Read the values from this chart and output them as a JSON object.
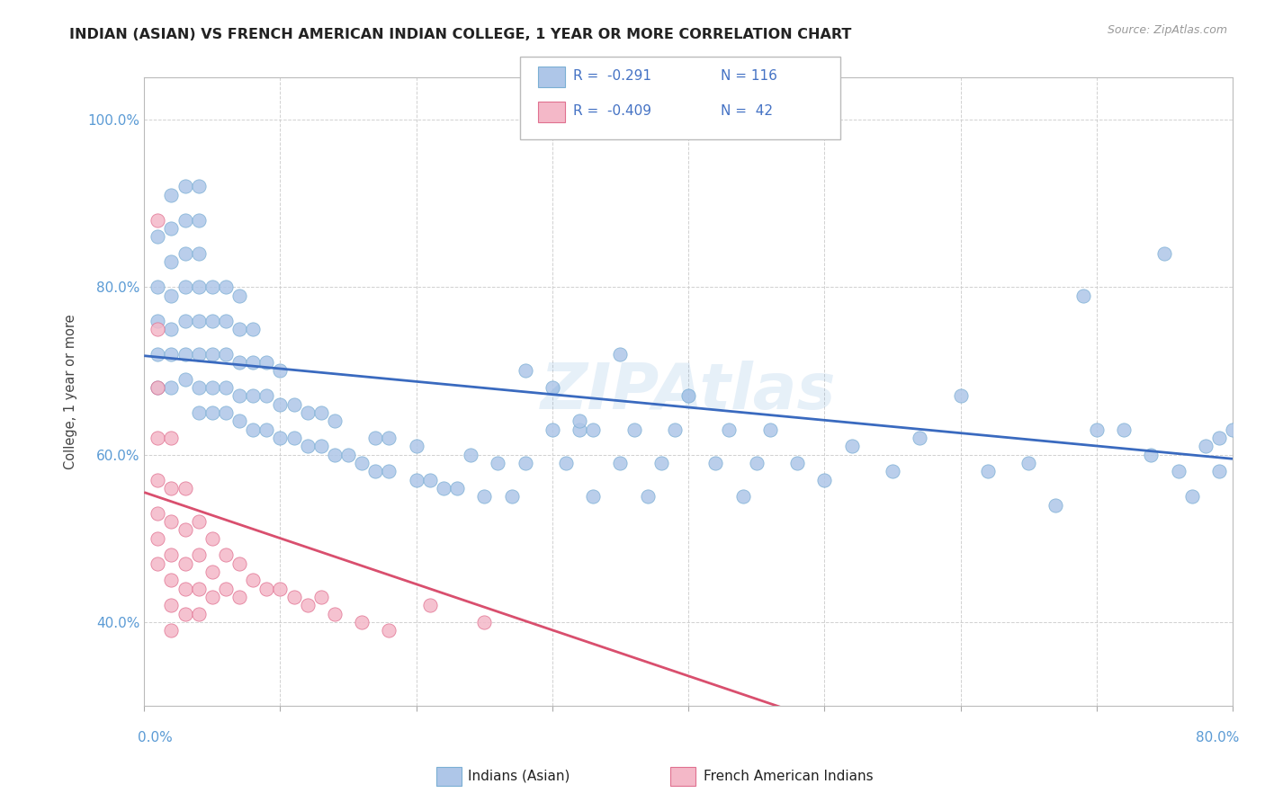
{
  "title": "INDIAN (ASIAN) VS FRENCH AMERICAN INDIAN COLLEGE, 1 YEAR OR MORE CORRELATION CHART",
  "source_text": "Source: ZipAtlas.com",
  "ylabel": "College, 1 year or more",
  "ytick_labels": [
    "40.0%",
    "60.0%",
    "80.0%",
    "100.0%"
  ],
  "ytick_values": [
    0.4,
    0.6,
    0.8,
    1.0
  ],
  "xlim": [
    0.0,
    0.8
  ],
  "ylim": [
    0.3,
    1.05
  ],
  "watermark": "ZIPAtlas",
  "legend_entries": [
    {
      "label_r": "R =  -0.291",
      "label_n": "N = 116",
      "color": "#aec6e8",
      "edge_color": "#7bafd4"
    },
    {
      "label_r": "R =  -0.409",
      "label_n": "N =  42",
      "color": "#f4b8c8",
      "edge_color": "#e07090"
    }
  ],
  "blue_line": {
    "x_start": 0.0,
    "y_start": 0.718,
    "x_end": 0.8,
    "y_end": 0.595
  },
  "pink_line": {
    "x_start": 0.0,
    "y_start": 0.555,
    "x_end": 0.52,
    "y_end": 0.27
  },
  "blue_dots": {
    "x": [
      0.01,
      0.01,
      0.01,
      0.01,
      0.01,
      0.02,
      0.02,
      0.02,
      0.02,
      0.02,
      0.02,
      0.02,
      0.03,
      0.03,
      0.03,
      0.03,
      0.03,
      0.03,
      0.03,
      0.04,
      0.04,
      0.04,
      0.04,
      0.04,
      0.04,
      0.04,
      0.04,
      0.05,
      0.05,
      0.05,
      0.05,
      0.05,
      0.06,
      0.06,
      0.06,
      0.06,
      0.06,
      0.07,
      0.07,
      0.07,
      0.07,
      0.07,
      0.08,
      0.08,
      0.08,
      0.08,
      0.09,
      0.09,
      0.09,
      0.1,
      0.1,
      0.1,
      0.11,
      0.11,
      0.12,
      0.12,
      0.13,
      0.13,
      0.14,
      0.14,
      0.15,
      0.16,
      0.17,
      0.17,
      0.18,
      0.18,
      0.2,
      0.2,
      0.21,
      0.22,
      0.23,
      0.24,
      0.25,
      0.26,
      0.27,
      0.28,
      0.3,
      0.31,
      0.32,
      0.33,
      0.35,
      0.36,
      0.37,
      0.38,
      0.39,
      0.4,
      0.42,
      0.43,
      0.44,
      0.45,
      0.46,
      0.48,
      0.5,
      0.52,
      0.55,
      0.57,
      0.6,
      0.62,
      0.65,
      0.67,
      0.69,
      0.7,
      0.72,
      0.74,
      0.75,
      0.76,
      0.77,
      0.78,
      0.79,
      0.79,
      0.8,
      0.28,
      0.3,
      0.32,
      0.33,
      0.35
    ],
    "y": [
      0.68,
      0.72,
      0.76,
      0.8,
      0.86,
      0.68,
      0.72,
      0.75,
      0.79,
      0.83,
      0.87,
      0.91,
      0.69,
      0.72,
      0.76,
      0.8,
      0.84,
      0.88,
      0.92,
      0.65,
      0.68,
      0.72,
      0.76,
      0.8,
      0.84,
      0.88,
      0.92,
      0.65,
      0.68,
      0.72,
      0.76,
      0.8,
      0.65,
      0.68,
      0.72,
      0.76,
      0.8,
      0.64,
      0.67,
      0.71,
      0.75,
      0.79,
      0.63,
      0.67,
      0.71,
      0.75,
      0.63,
      0.67,
      0.71,
      0.62,
      0.66,
      0.7,
      0.62,
      0.66,
      0.61,
      0.65,
      0.61,
      0.65,
      0.6,
      0.64,
      0.6,
      0.59,
      0.58,
      0.62,
      0.58,
      0.62,
      0.57,
      0.61,
      0.57,
      0.56,
      0.56,
      0.6,
      0.55,
      0.59,
      0.55,
      0.59,
      0.63,
      0.59,
      0.63,
      0.55,
      0.59,
      0.63,
      0.55,
      0.59,
      0.63,
      0.67,
      0.59,
      0.63,
      0.55,
      0.59,
      0.63,
      0.59,
      0.57,
      0.61,
      0.58,
      0.62,
      0.67,
      0.58,
      0.59,
      0.54,
      0.79,
      0.63,
      0.63,
      0.6,
      0.84,
      0.58,
      0.55,
      0.61,
      0.62,
      0.58,
      0.63,
      0.7,
      0.68,
      0.64,
      0.63,
      0.72
    ]
  },
  "pink_dots": {
    "x": [
      0.01,
      0.01,
      0.01,
      0.01,
      0.01,
      0.01,
      0.01,
      0.01,
      0.02,
      0.02,
      0.02,
      0.02,
      0.02,
      0.02,
      0.02,
      0.03,
      0.03,
      0.03,
      0.03,
      0.03,
      0.04,
      0.04,
      0.04,
      0.04,
      0.05,
      0.05,
      0.05,
      0.06,
      0.06,
      0.07,
      0.07,
      0.08,
      0.09,
      0.1,
      0.11,
      0.12,
      0.13,
      0.14,
      0.16,
      0.18,
      0.21,
      0.25
    ],
    "y": [
      0.88,
      0.75,
      0.68,
      0.62,
      0.57,
      0.53,
      0.5,
      0.47,
      0.62,
      0.56,
      0.52,
      0.48,
      0.45,
      0.42,
      0.39,
      0.56,
      0.51,
      0.47,
      0.44,
      0.41,
      0.52,
      0.48,
      0.44,
      0.41,
      0.5,
      0.46,
      0.43,
      0.48,
      0.44,
      0.47,
      0.43,
      0.45,
      0.44,
      0.44,
      0.43,
      0.42,
      0.43,
      0.41,
      0.4,
      0.39,
      0.42,
      0.4
    ]
  }
}
